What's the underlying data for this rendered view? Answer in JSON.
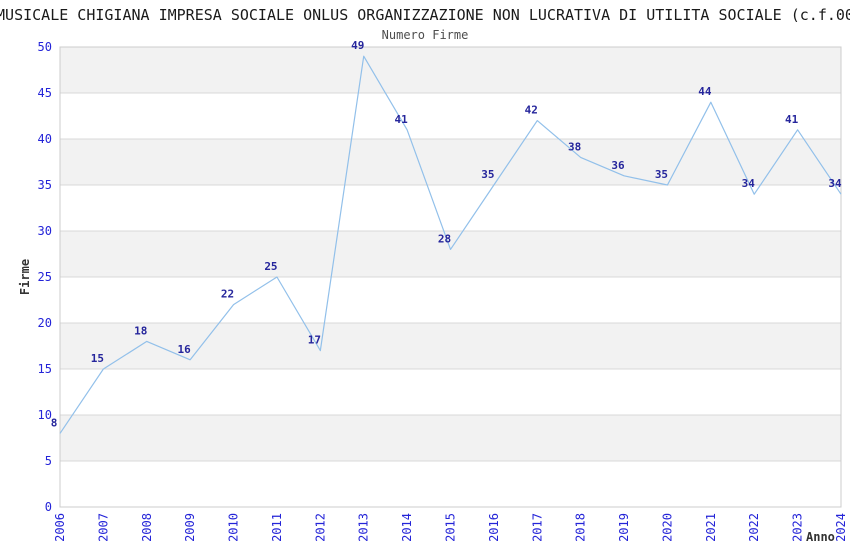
{
  "chart_data": {
    "type": "line",
    "title": "MUSICALE CHIGIANA IMPRESA SOCIALE ONLUS ORGANIZZAZIONE NON LUCRATIVA DI UTILITA SOCIALE (c.f.00",
    "subtitle": "Numero Firme",
    "xlabel": "Anno",
    "ylabel": "Firme",
    "categories": [
      "2006",
      "2007",
      "2008",
      "2009",
      "2010",
      "2011",
      "2012",
      "2013",
      "2014",
      "2015",
      "2016",
      "2017",
      "2018",
      "2019",
      "2020",
      "2021",
      "2022",
      "2023",
      "2024"
    ],
    "values": [
      8,
      15,
      18,
      16,
      22,
      25,
      17,
      49,
      41,
      28,
      35,
      42,
      38,
      36,
      35,
      44,
      34,
      41,
      34
    ],
    "ylim": [
      0,
      50
    ],
    "ytick_step": 5,
    "yticks": [
      0,
      5,
      10,
      15,
      20,
      25,
      30,
      35,
      40,
      45,
      50
    ],
    "grid": "horizontal-gridlines-with-alternating-bands",
    "legend": "none",
    "colors": {
      "line": "#92c0ea",
      "data_label": "#26269c",
      "tick_label": "#2424d8",
      "band": "#f2f2f2",
      "grid_line": "#d8d8d8",
      "plot_border": "#cccccc",
      "title": "#1a1a1a",
      "subtitle": "#4d4d4d",
      "axis_name": "#333333"
    }
  }
}
